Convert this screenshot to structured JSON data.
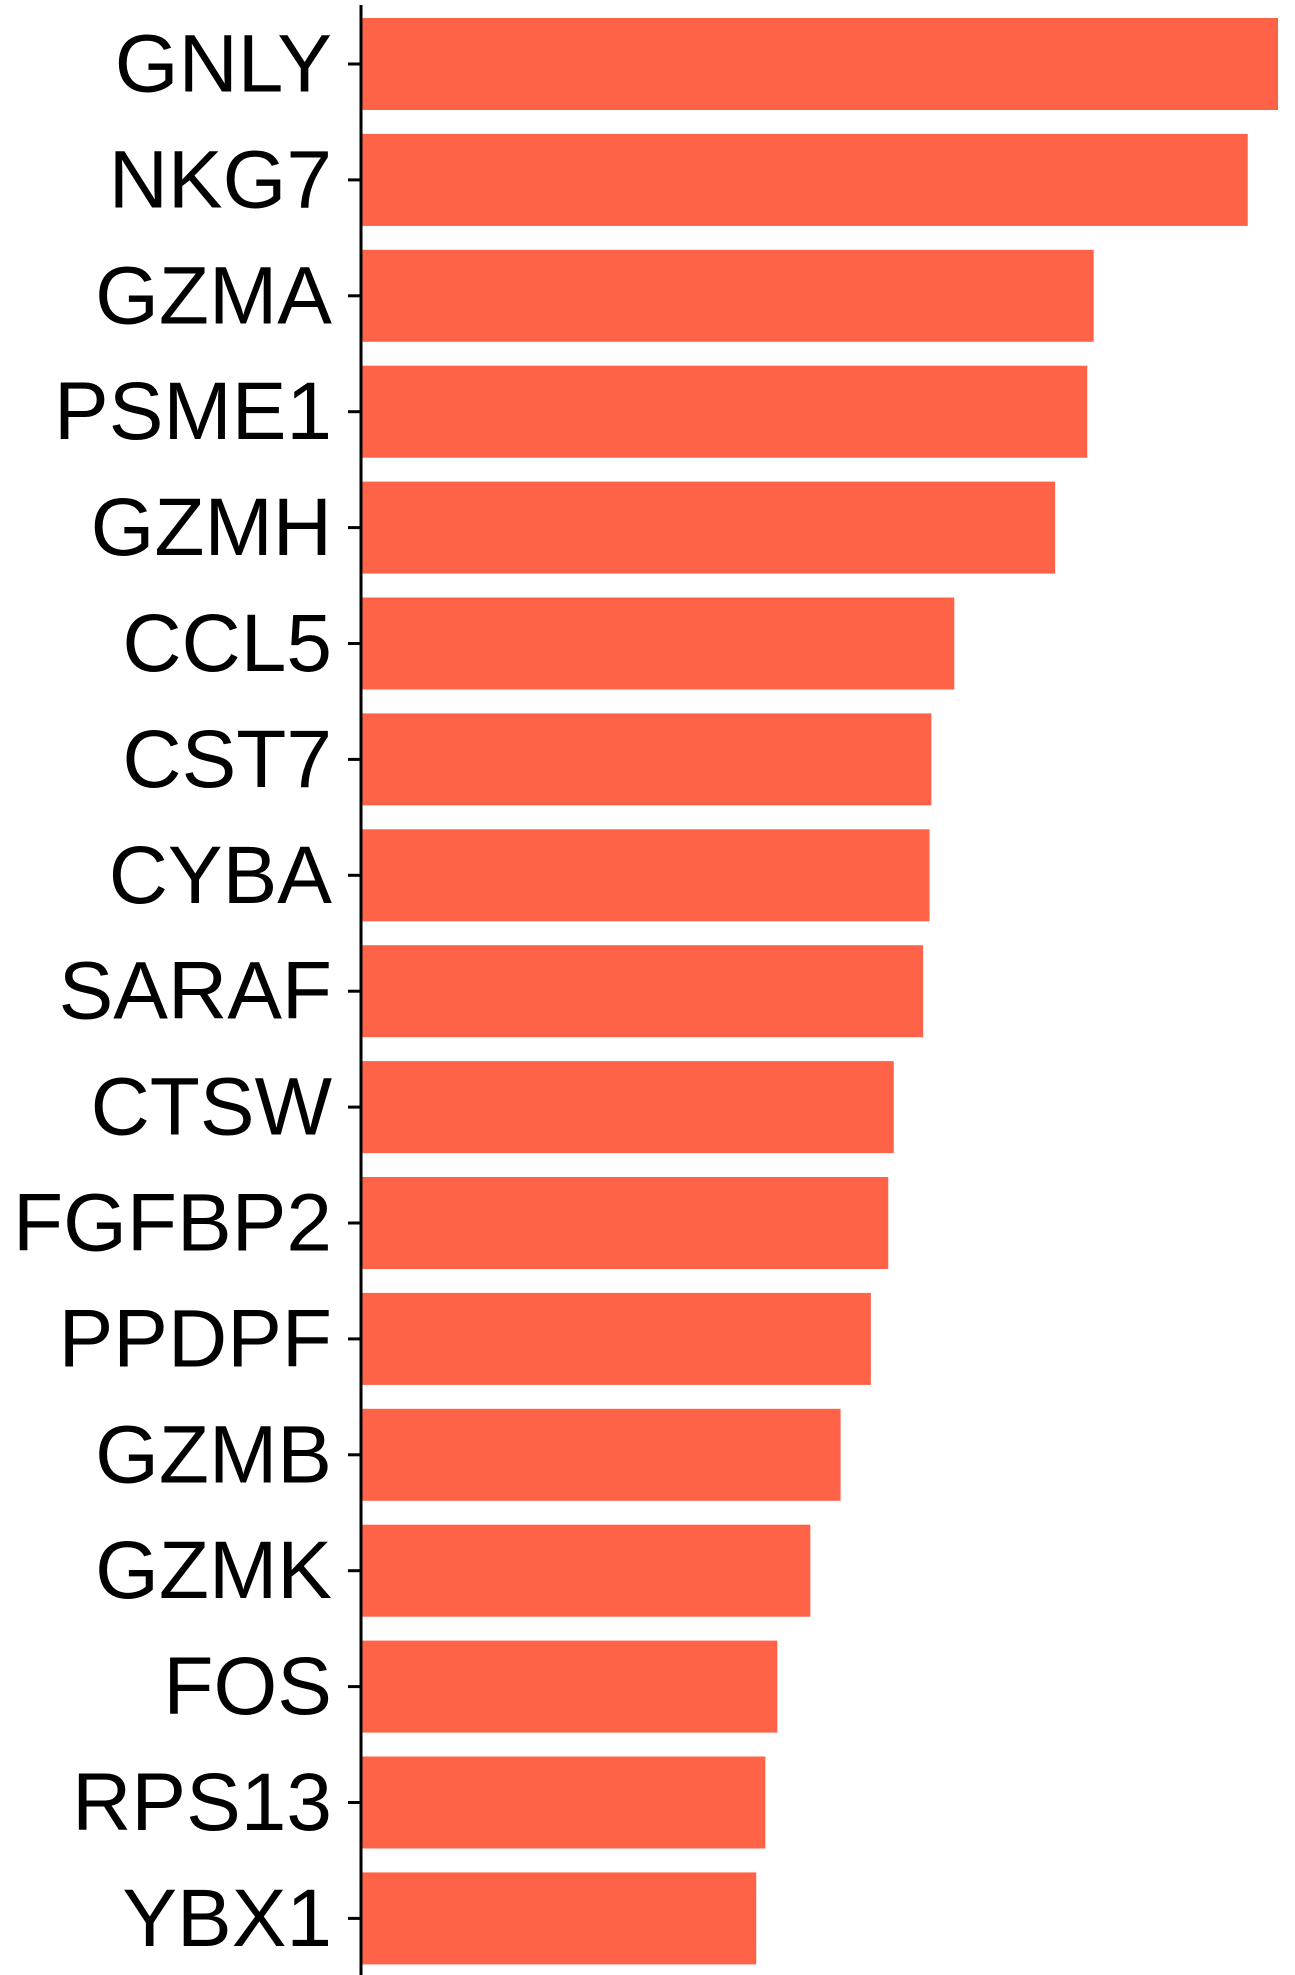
{
  "chart_data": {
    "type": "bar",
    "orientation": "horizontal",
    "categories": [
      "GNLY",
      "NKG7",
      "GZMA",
      "PSME1",
      "GZMH",
      "CCL5",
      "CST7",
      "CYBA",
      "SARAF",
      "CTSW",
      "FGFBP2",
      "PPDPF",
      "GZMB",
      "GZMK",
      "FOS",
      "RPS13",
      "YBX1"
    ],
    "values": [
      1.0,
      0.967,
      0.799,
      0.792,
      0.757,
      0.647,
      0.622,
      0.62,
      0.613,
      0.581,
      0.575,
      0.556,
      0.523,
      0.49,
      0.454,
      0.441,
      0.431
    ],
    "xlim": [
      0,
      1.0
    ],
    "bar_color": "#FF6347",
    "axis_color": "#000000",
    "grid": false,
    "legend": "none",
    "title": "",
    "xlabel": "",
    "ylabel": ""
  }
}
